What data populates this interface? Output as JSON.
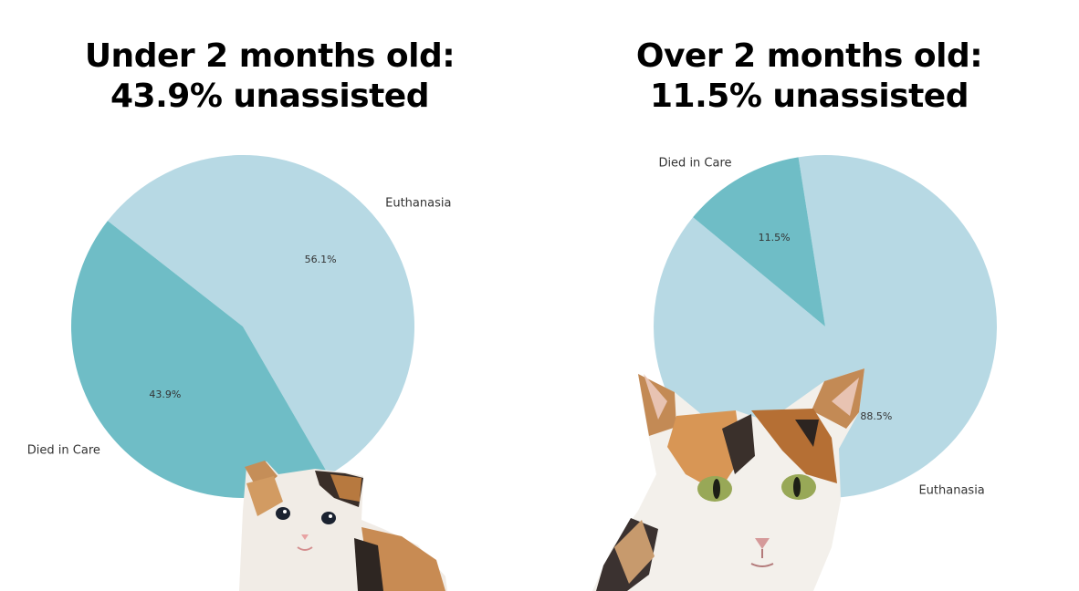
{
  "chart_data": [
    {
      "type": "pie",
      "title_lines": [
        "Under 2 months old:",
        "43.9% unassisted"
      ],
      "slices": [
        {
          "label": "Euthanasia",
          "value": 56.1,
          "pct_label": "56.1%",
          "color": "#b7d9e4"
        },
        {
          "label": "Died in Care",
          "value": 43.9,
          "pct_label": "43.9%",
          "color": "#6fbdc6"
        }
      ],
      "legend": "none"
    },
    {
      "type": "pie",
      "title_lines": [
        "Over 2 months old:",
        "11.5% unassisted"
      ],
      "slices": [
        {
          "label": "Euthanasia",
          "value": 88.5,
          "pct_label": "88.5%",
          "color": "#b7d9e4"
        },
        {
          "label": "Died in Care",
          "value": 11.5,
          "pct_label": "11.5%",
          "color": "#6fbdc6"
        }
      ],
      "legend": "none"
    }
  ],
  "images": [
    {
      "name": "kitten-photo",
      "subject": "calico kitten"
    },
    {
      "name": "adult-cat-photo",
      "subject": "calico adult cat"
    }
  ]
}
